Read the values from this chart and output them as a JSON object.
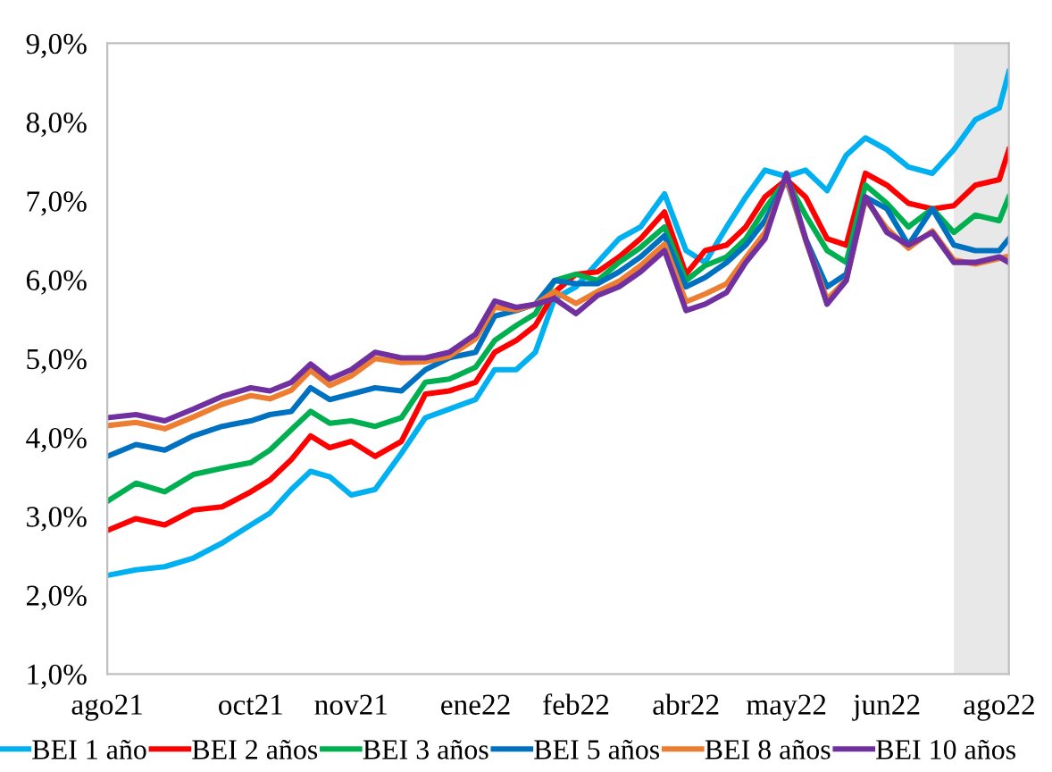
{
  "chart_data": {
    "type": "line",
    "x": [
      "2021-08-02",
      "2021-08-14",
      "2021-08-26",
      "2021-09-07",
      "2021-09-19",
      "2021-10-01",
      "2021-10-09",
      "2021-10-18",
      "2021-10-26",
      "2021-11-03",
      "2021-11-12",
      "2021-11-22",
      "2021-12-03",
      "2021-12-13",
      "2021-12-23",
      "2022-01-03",
      "2022-01-11",
      "2022-01-20",
      "2022-01-28",
      "2022-02-05",
      "2022-02-14",
      "2022-02-23",
      "2022-03-04",
      "2022-03-13",
      "2022-03-23",
      "2022-04-01",
      "2022-04-09",
      "2022-04-18",
      "2022-04-26",
      "2022-05-04",
      "2022-05-13",
      "2022-05-21",
      "2022-05-30",
      "2022-06-07",
      "2022-06-15",
      "2022-06-24",
      "2022-07-03",
      "2022-07-13",
      "2022-07-22",
      "2022-07-31",
      "2022-08-10",
      "2022-08-14"
    ],
    "series": [
      {
        "name": "BEI 1 año",
        "color": "#00b0f0",
        "values": [
          2.25,
          2.32,
          2.36,
          2.47,
          2.66,
          2.89,
          3.04,
          3.34,
          3.57,
          3.5,
          3.27,
          3.34,
          3.8,
          4.25,
          4.36,
          4.48,
          4.86,
          4.86,
          5.08,
          5.76,
          5.91,
          6.22,
          6.52,
          6.67,
          7.09,
          6.37,
          6.22,
          6.67,
          7.05,
          7.39,
          7.31,
          7.39,
          7.13,
          7.58,
          7.8,
          7.65,
          7.43,
          7.35,
          7.65,
          8.03,
          8.18,
          8.64
        ]
      },
      {
        "name": "BEI 2 años",
        "color": "#ff0000",
        "values": [
          2.82,
          2.97,
          2.89,
          3.08,
          3.12,
          3.31,
          3.46,
          3.72,
          4.02,
          3.87,
          3.95,
          3.76,
          3.95,
          4.55,
          4.59,
          4.7,
          5.08,
          5.23,
          5.42,
          5.84,
          6.07,
          6.1,
          6.29,
          6.52,
          6.86,
          6.07,
          6.37,
          6.44,
          6.67,
          7.05,
          7.27,
          7.05,
          6.52,
          6.44,
          7.35,
          7.2,
          6.97,
          6.9,
          6.94,
          7.2,
          7.27,
          7.65
        ]
      },
      {
        "name": "BEI 3 años",
        "color": "#00b050",
        "values": [
          3.19,
          3.42,
          3.31,
          3.53,
          3.61,
          3.68,
          3.84,
          4.1,
          4.33,
          4.18,
          4.21,
          4.14,
          4.25,
          4.7,
          4.74,
          4.89,
          5.23,
          5.42,
          5.57,
          5.99,
          6.07,
          5.99,
          6.22,
          6.41,
          6.67,
          5.99,
          6.18,
          6.29,
          6.52,
          6.9,
          7.27,
          6.82,
          6.37,
          6.22,
          7.2,
          6.97,
          6.67,
          6.9,
          6.6,
          6.82,
          6.75,
          7.05
        ]
      },
      {
        "name": "BEI 5 años",
        "color": "#0070c0",
        "values": [
          3.76,
          3.91,
          3.84,
          4.02,
          4.14,
          4.21,
          4.29,
          4.33,
          4.63,
          4.48,
          4.55,
          4.63,
          4.59,
          4.86,
          5.01,
          5.08,
          5.54,
          5.61,
          5.69,
          5.99,
          5.95,
          5.95,
          6.1,
          6.29,
          6.56,
          5.91,
          6.03,
          6.22,
          6.44,
          6.75,
          7.27,
          6.52,
          5.91,
          6.07,
          7.05,
          6.9,
          6.44,
          6.9,
          6.44,
          6.37,
          6.37,
          6.52
        ]
      },
      {
        "name": "BEI 8 años",
        "color": "#ed7d31",
        "values": [
          4.15,
          4.19,
          4.11,
          4.26,
          4.42,
          4.53,
          4.49,
          4.6,
          4.85,
          4.66,
          4.78,
          5.0,
          4.95,
          4.96,
          5.03,
          5.25,
          5.65,
          5.62,
          5.69,
          5.85,
          5.7,
          5.85,
          5.98,
          6.18,
          6.45,
          5.72,
          5.82,
          5.95,
          6.28,
          6.6,
          7.3,
          6.5,
          5.75,
          6.0,
          7.02,
          6.65,
          6.4,
          6.62,
          6.25,
          6.2,
          6.27,
          6.3
        ]
      },
      {
        "name": "BEI 10 años",
        "color": "#7030a0",
        "values": [
          4.25,
          4.29,
          4.21,
          4.36,
          4.52,
          4.63,
          4.59,
          4.7,
          4.93,
          4.74,
          4.86,
          5.08,
          5.01,
          5.01,
          5.08,
          5.31,
          5.73,
          5.65,
          5.69,
          5.76,
          5.57,
          5.8,
          5.91,
          6.1,
          6.37,
          5.61,
          5.69,
          5.84,
          6.22,
          6.52,
          7.35,
          6.52,
          5.69,
          5.99,
          7.05,
          6.6,
          6.44,
          6.6,
          6.22,
          6.22,
          6.29,
          6.22
        ]
      }
    ],
    "xlim": [
      "2021-08-02",
      "2022-08-14"
    ],
    "xticks": [
      {
        "value": "2021-08-02",
        "label": "ago21"
      },
      {
        "value": "2021-10-01",
        "label": "oct21"
      },
      {
        "value": "2021-11-12",
        "label": "nov21"
      },
      {
        "value": "2022-01-03",
        "label": "ene22"
      },
      {
        "value": "2022-02-14",
        "label": "feb22"
      },
      {
        "value": "2022-04-01",
        "label": "abr22"
      },
      {
        "value": "2022-05-13",
        "label": "may22"
      },
      {
        "value": "2022-06-24",
        "label": "jun22"
      },
      {
        "value": "2022-08-10",
        "label": "ago22"
      }
    ],
    "ylim": [
      1,
      9
    ],
    "yticks": [
      {
        "value": 1,
        "label": "1,0%"
      },
      {
        "value": 2,
        "label": "2,0%"
      },
      {
        "value": 3,
        "label": "3,0%"
      },
      {
        "value": 4,
        "label": "4,0%"
      },
      {
        "value": 5,
        "label": "5,0%"
      },
      {
        "value": 6,
        "label": "6,0%"
      },
      {
        "value": 7,
        "label": "7,0%"
      },
      {
        "value": 8,
        "label": "8,0%"
      },
      {
        "value": 9,
        "label": "9,0%"
      }
    ],
    "bands": [
      {
        "axis": "x",
        "from": "2022-07-22",
        "to": "2022-08-14",
        "color": "#e8e8e8"
      }
    ],
    "legend": "bottom",
    "grid": false,
    "marker": "none",
    "line_style": "solid"
  }
}
